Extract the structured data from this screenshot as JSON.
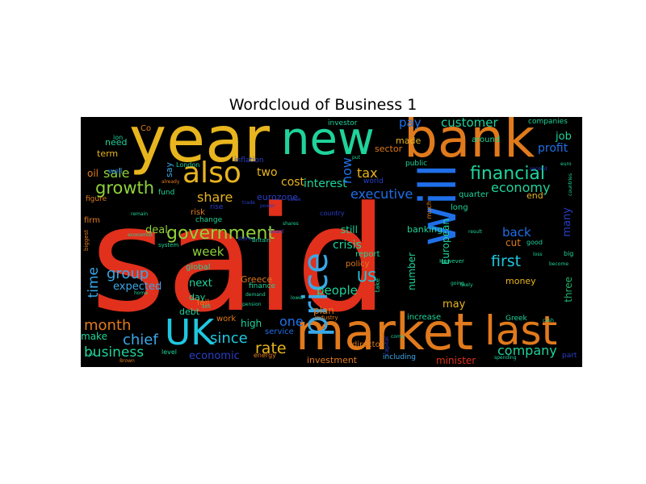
{
  "title": "Wordcloud of Business 1",
  "palette": {
    "red": "#e1301c",
    "orange": "#e07a1c",
    "yellow": "#e8b51e",
    "teal": "#1fd39a",
    "cyan": "#1ec8e0",
    "blue": "#1f6fe8",
    "navy": "#2a3fc8",
    "lime": "#8fd23a",
    "green": "#1fb36a",
    "sky": "#3aa8e8",
    "dark": "#0e3c2e"
  },
  "words": [
    {
      "text": "said",
      "color": "red"
    },
    {
      "text": "year",
      "color": "yellow"
    },
    {
      "text": "bank",
      "color": "orange"
    },
    {
      "text": "market",
      "color": "orange"
    },
    {
      "text": "new",
      "color": "teal"
    },
    {
      "text": "will",
      "color": "blue"
    },
    {
      "text": "UK",
      "color": "cyan"
    },
    {
      "text": "last",
      "color": "orange"
    },
    {
      "text": "also",
      "color": "yellow"
    },
    {
      "text": "price",
      "color": "sky"
    },
    {
      "text": "government",
      "color": "lime"
    },
    {
      "text": "financial",
      "color": "teal"
    },
    {
      "text": "growth",
      "color": "lime"
    },
    {
      "text": "month",
      "color": "orange"
    },
    {
      "text": "business",
      "color": "teal"
    },
    {
      "text": "company",
      "color": "teal"
    },
    {
      "text": "rate",
      "color": "yellow"
    },
    {
      "text": "group",
      "color": "sky"
    },
    {
      "text": "chief",
      "color": "sky"
    },
    {
      "text": "since",
      "color": "cyan"
    },
    {
      "text": "first",
      "color": "cyan"
    },
    {
      "text": "economy",
      "color": "teal"
    },
    {
      "text": "executive",
      "color": "blue"
    },
    {
      "text": "customer",
      "color": "teal"
    },
    {
      "text": "pay",
      "color": "blue"
    },
    {
      "text": "sale",
      "color": "lime"
    },
    {
      "text": "share",
      "color": "yellow"
    },
    {
      "text": "tax",
      "color": "yellow"
    },
    {
      "text": "week",
      "color": "lime"
    },
    {
      "text": "one",
      "color": "blue"
    },
    {
      "text": "time",
      "color": "sky"
    },
    {
      "text": "back",
      "color": "blue"
    },
    {
      "text": "deal",
      "color": "lime"
    },
    {
      "text": "crisis",
      "color": "teal"
    },
    {
      "text": "US",
      "color": "cyan"
    },
    {
      "text": "people",
      "color": "teal"
    },
    {
      "text": "next",
      "color": "teal"
    },
    {
      "text": "expected",
      "color": "sky"
    },
    {
      "text": "economic",
      "color": "navy"
    },
    {
      "text": "cost",
      "color": "yellow"
    },
    {
      "text": "two",
      "color": "yellow"
    },
    {
      "text": "interest",
      "color": "teal"
    },
    {
      "text": "now",
      "color": "blue"
    },
    {
      "text": "profit",
      "color": "blue"
    },
    {
      "text": "job",
      "color": "teal"
    },
    {
      "text": "plan",
      "color": "orange"
    },
    {
      "text": "may",
      "color": "yellow"
    },
    {
      "text": "high",
      "color": "teal"
    },
    {
      "text": "make",
      "color": "teal"
    },
    {
      "text": "minister",
      "color": "red"
    },
    {
      "text": "investment",
      "color": "orange"
    },
    {
      "text": "including",
      "color": "sky"
    },
    {
      "text": "increase",
      "color": "teal"
    },
    {
      "text": "three",
      "color": "green"
    },
    {
      "text": "many",
      "color": "navy"
    },
    {
      "text": "money",
      "color": "yellow"
    },
    {
      "text": "cut",
      "color": "orange"
    },
    {
      "text": "still",
      "color": "teal"
    },
    {
      "text": "number",
      "color": "teal"
    },
    {
      "text": "European",
      "color": "teal"
    },
    {
      "text": "banking",
      "color": "teal"
    },
    {
      "text": "Greece",
      "color": "orange"
    },
    {
      "text": "global",
      "color": "teal"
    },
    {
      "text": "day",
      "color": "teal"
    },
    {
      "text": "debt",
      "color": "teal"
    },
    {
      "text": "fall",
      "color": "orange"
    },
    {
      "text": "risk",
      "color": "orange"
    },
    {
      "text": "made",
      "color": "yellow"
    },
    {
      "text": "sector",
      "color": "orange"
    },
    {
      "text": "investor",
      "color": "teal"
    },
    {
      "text": "quarter",
      "color": "teal"
    },
    {
      "text": "long",
      "color": "teal"
    },
    {
      "text": "end",
      "color": "yellow"
    },
    {
      "text": "around",
      "color": "teal"
    },
    {
      "text": "companies",
      "color": "teal"
    },
    {
      "text": "need",
      "color": "teal"
    },
    {
      "text": "oil",
      "color": "orange"
    },
    {
      "text": "term",
      "color": "yellow"
    },
    {
      "text": "say",
      "color": "sky"
    },
    {
      "text": "fund",
      "color": "teal"
    },
    {
      "text": "figure",
      "color": "orange"
    },
    {
      "text": "firm",
      "color": "orange"
    },
    {
      "text": "director",
      "color": "orange"
    },
    {
      "text": "report",
      "color": "teal"
    },
    {
      "text": "policy",
      "color": "orange"
    },
    {
      "text": "world",
      "color": "navy"
    },
    {
      "text": "eurozone",
      "color": "navy"
    },
    {
      "text": "public",
      "color": "teal"
    },
    {
      "text": "inflation",
      "color": "navy"
    },
    {
      "text": "service",
      "color": "blue"
    },
    {
      "text": "finance",
      "color": "teal"
    },
    {
      "text": "work",
      "color": "orange"
    },
    {
      "text": "Greek",
      "color": "teal"
    },
    {
      "text": "part",
      "color": "navy"
    },
    {
      "text": "good",
      "color": "teal"
    },
    {
      "text": "big",
      "color": "teal"
    },
    {
      "text": "London",
      "color": "teal"
    },
    {
      "text": "well",
      "color": "blue"
    },
    {
      "text": "Co",
      "color": "orange"
    },
    {
      "text": "change",
      "color": "teal"
    },
    {
      "text": "rise",
      "color": "navy"
    },
    {
      "text": "country",
      "color": "navy"
    },
    {
      "text": "However",
      "color": "teal"
    },
    {
      "text": "much",
      "color": "orange"
    },
    {
      "text": "level",
      "color": "teal"
    },
    {
      "text": "energy",
      "color": "orange"
    },
    {
      "text": "industry",
      "color": "orange"
    },
    {
      "text": "biggest",
      "color": "orange"
    },
    {
      "text": "ion",
      "color": "teal"
    },
    {
      "text": "set",
      "color": "teal"
    },
    {
      "text": "take",
      "color": "teal"
    },
    {
      "text": "Britain",
      "color": "teal"
    },
    {
      "text": "store",
      "color": "navy"
    },
    {
      "text": "capital",
      "color": "navy"
    },
    {
      "text": "system",
      "color": "teal"
    },
    {
      "text": "remain",
      "color": "teal"
    },
    {
      "text": "board",
      "color": "navy"
    },
    {
      "text": "put",
      "color": "teal"
    },
    {
      "text": "likely",
      "color": "teal"
    },
    {
      "text": "already",
      "color": "orange"
    },
    {
      "text": "going",
      "color": "teal"
    },
    {
      "text": "come",
      "color": "teal"
    },
    {
      "text": "become",
      "color": "teal"
    },
    {
      "text": "economist",
      "color": "teal"
    },
    {
      "text": "demand",
      "color": "teal"
    },
    {
      "text": "home",
      "color": "teal"
    },
    {
      "text": "loss",
      "color": "teal"
    },
    {
      "text": "countries",
      "color": "teal"
    },
    {
      "text": "Brown",
      "color": "orange"
    },
    {
      "text": "spending",
      "color": "teal"
    },
    {
      "text": "ex",
      "color": "teal"
    },
    {
      "text": "euro",
      "color": "teal"
    },
    {
      "text": "second",
      "color": "navy"
    },
    {
      "text": "result",
      "color": "teal"
    },
    {
      "text": "lower",
      "color": "teal"
    },
    {
      "text": "shares",
      "color": "teal"
    },
    {
      "text": "pension",
      "color": "teal"
    },
    {
      "text": "power",
      "color": "navy"
    },
    {
      "text": "trade",
      "color": "navy"
    },
    {
      "text": "value",
      "color": "navy"
    },
    {
      "text": "cash",
      "color": "teal"
    }
  ]
}
